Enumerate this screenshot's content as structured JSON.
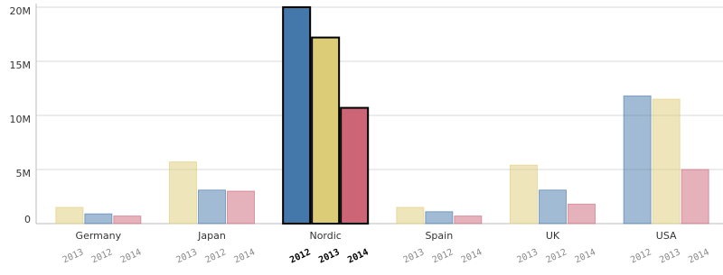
{
  "chart_data": {
    "type": "grouped-bar",
    "ylim": [
      0,
      20000000
    ],
    "yticks": [
      0,
      {
        "value": 5000000,
        "label": "5M"
      },
      {
        "value": 10000000,
        "label": "10M"
      },
      {
        "value": 15000000,
        "label": "15M"
      },
      {
        "value": 20000000,
        "label": "20M"
      }
    ],
    "grid": true,
    "groups": [
      {
        "name": "Germany",
        "selected": false,
        "bars": [
          {
            "label": "2013",
            "value": 1500000,
            "color": "#ddcc77"
          },
          {
            "label": "2012",
            "value": 900000,
            "color": "#4477aa"
          },
          {
            "label": "2014",
            "value": 700000,
            "color": "#cc6677"
          }
        ]
      },
      {
        "name": "Japan",
        "selected": false,
        "bars": [
          {
            "label": "2013",
            "value": 5700000,
            "color": "#ddcc77"
          },
          {
            "label": "2012",
            "value": 3100000,
            "color": "#4477aa"
          },
          {
            "label": "2014",
            "value": 3000000,
            "color": "#cc6677"
          }
        ]
      },
      {
        "name": "Nordic",
        "selected": true,
        "bars": [
          {
            "label": "2012",
            "value": 20000000,
            "color": "#4477aa"
          },
          {
            "label": "2013",
            "value": 17200000,
            "color": "#ddcc77"
          },
          {
            "label": "2014",
            "value": 10700000,
            "color": "#cc6677"
          }
        ]
      },
      {
        "name": "Spain",
        "selected": false,
        "bars": [
          {
            "label": "2013",
            "value": 1500000,
            "color": "#ddcc77"
          },
          {
            "label": "2012",
            "value": 1100000,
            "color": "#4477aa"
          },
          {
            "label": "2014",
            "value": 700000,
            "color": "#cc6677"
          }
        ]
      },
      {
        "name": "UK",
        "selected": false,
        "bars": [
          {
            "label": "2013",
            "value": 5400000,
            "color": "#ddcc77"
          },
          {
            "label": "2012",
            "value": 3100000,
            "color": "#4477aa"
          },
          {
            "label": "2014",
            "value": 1800000,
            "color": "#cc6677"
          }
        ]
      },
      {
        "name": "USA",
        "selected": false,
        "bars": [
          {
            "label": "2012",
            "value": 11800000,
            "color": "#4477aa"
          },
          {
            "label": "2013",
            "value": 11500000,
            "color": "#ddcc77"
          },
          {
            "label": "2014",
            "value": 5000000,
            "color": "#cc6677"
          }
        ]
      }
    ]
  }
}
